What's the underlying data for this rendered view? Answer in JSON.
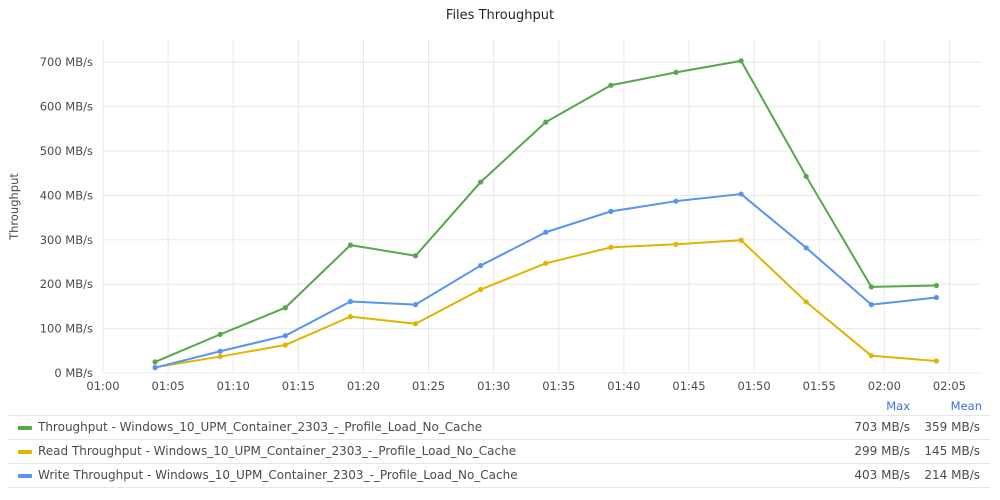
{
  "title": "Files Throughput",
  "legend_header": {
    "max": "Max",
    "mean": "Mean"
  },
  "chart_data": {
    "type": "line",
    "title": "Files Throughput",
    "ylabel": "Throughput",
    "xlabel": "",
    "x_ticks": [
      "01:00",
      "01:05",
      "01:10",
      "01:15",
      "01:20",
      "01:25",
      "01:30",
      "01:35",
      "01:40",
      "01:45",
      "01:50",
      "01:55",
      "02:00",
      "02:05"
    ],
    "y_ticks": [
      "0 MB/s",
      "100 MB/s",
      "200 MB/s",
      "300 MB/s",
      "400 MB/s",
      "500 MB/s",
      "600 MB/s",
      "700 MB/s"
    ],
    "y_unit": "MB/s",
    "ylim": [
      0,
      750
    ],
    "xlim_minutes": [
      0,
      67.5
    ],
    "grid": true,
    "legend_placement": "bottom",
    "x": [
      4,
      9,
      14,
      19,
      24,
      29,
      34,
      39,
      44,
      49,
      54,
      59,
      64
    ],
    "series": [
      {
        "name": "Throughput - Windows_10_UPM_Container_2303_-_Profile_Load_No_Cache",
        "color": "#56a64b",
        "values": [
          25,
          87,
          147,
          288,
          264,
          430,
          565,
          648,
          677,
          703,
          443,
          194,
          197
        ],
        "max": "703 MB/s",
        "mean": "359 MB/s"
      },
      {
        "name": "Read Throughput - Windows_10_UPM_Container_2303_-_Profile_Load_No_Cache",
        "color": "#e0b400",
        "values": [
          13,
          37,
          63,
          127,
          111,
          188,
          247,
          283,
          290,
          299,
          160,
          39,
          27
        ],
        "max": "299 MB/s",
        "mean": "145 MB/s"
      },
      {
        "name": "Write Throughput - Windows_10_UPM_Container_2303_-_Profile_Load_No_Cache",
        "color": "#5794f2",
        "values": [
          12,
          49,
          84,
          161,
          154,
          242,
          317,
          364,
          387,
          403,
          282,
          154,
          170
        ],
        "max": "403 MB/s",
        "mean": "214 MB/s"
      }
    ]
  }
}
